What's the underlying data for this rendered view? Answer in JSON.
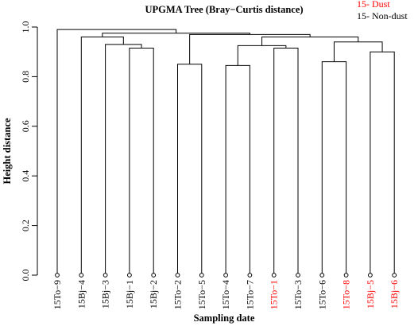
{
  "chart_data": {
    "type": "dendrogram",
    "title": "UPGMA Tree (Bray−Curtis distance)",
    "xlabel": "Sampling date",
    "ylabel": "Height distance",
    "ylim": [
      0,
      1.0
    ],
    "yticks": [
      "0.0",
      "0.2",
      "0.4",
      "0.6",
      "0.8",
      "1.0"
    ],
    "legend": {
      "position": "top-right",
      "entries": [
        {
          "label": "15-  Dust",
          "color": "#ff0000"
        },
        {
          "label": "15-  Non-dust",
          "color": "#000000"
        }
      ]
    },
    "leaves": [
      {
        "label": "15To−9",
        "group": "Non-dust"
      },
      {
        "label": "15Bj−4",
        "group": "Non-dust"
      },
      {
        "label": "15Bj−3",
        "group": "Non-dust"
      },
      {
        "label": "15Bj−1",
        "group": "Non-dust"
      },
      {
        "label": "15Bj−2",
        "group": "Non-dust"
      },
      {
        "label": "15To−2",
        "group": "Non-dust"
      },
      {
        "label": "15To−5",
        "group": "Non-dust"
      },
      {
        "label": "15To−4",
        "group": "Non-dust"
      },
      {
        "label": "15To−7",
        "group": "Non-dust"
      },
      {
        "label": "15To−1",
        "group": "Dust"
      },
      {
        "label": "15To−3",
        "group": "Non-dust"
      },
      {
        "label": "15To−6",
        "group": "Non-dust"
      },
      {
        "label": "15To−8",
        "group": "Dust"
      },
      {
        "label": "15Bj−5",
        "group": "Dust"
      },
      {
        "label": "15Bj−6",
        "group": "Dust"
      }
    ],
    "merges": [
      {
        "a": [
          "L",
          3
        ],
        "b": [
          "L",
          4
        ],
        "height": 0.915
      },
      {
        "a": [
          "L",
          2
        ],
        "b": [
          "M",
          0
        ],
        "height": 0.93
      },
      {
        "a": [
          "L",
          1
        ],
        "b": [
          "M",
          1
        ],
        "height": 0.96
      },
      {
        "a": [
          "L",
          5
        ],
        "b": [
          "L",
          6
        ],
        "height": 0.85
      },
      {
        "a": [
          "L",
          7
        ],
        "b": [
          "L",
          8
        ],
        "height": 0.845
      },
      {
        "a": [
          "L",
          9
        ],
        "b": [
          "L",
          10
        ],
        "height": 0.915
      },
      {
        "a": [
          "M",
          4
        ],
        "b": [
          "M",
          5
        ],
        "height": 0.925
      },
      {
        "a": [
          "L",
          11
        ],
        "b": [
          "L",
          12
        ],
        "height": 0.86
      },
      {
        "a": [
          "L",
          13
        ],
        "b": [
          "L",
          14
        ],
        "height": 0.9
      },
      {
        "a": [
          "M",
          7
        ],
        "b": [
          "M",
          8
        ],
        "height": 0.94
      },
      {
        "a": [
          "M",
          6
        ],
        "b": [
          "M",
          9
        ],
        "height": 0.96
      },
      {
        "a": [
          "M",
          3
        ],
        "b": [
          "M",
          10
        ],
        "height": 0.97
      },
      {
        "a": [
          "M",
          2
        ],
        "b": [
          "M",
          11
        ],
        "height": 0.975
      },
      {
        "a": [
          "L",
          0
        ],
        "b": [
          "M",
          12
        ],
        "height": 0.99
      }
    ],
    "colors": {
      "dust": "#ff0000",
      "nondust": "#000000",
      "axis": "#000000"
    }
  }
}
